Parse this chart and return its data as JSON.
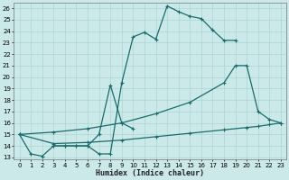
{
  "xlabel": "Humidex (Indice chaleur)",
  "xlim": [
    -0.5,
    23.5
  ],
  "ylim": [
    12.8,
    26.5
  ],
  "xticks": [
    0,
    1,
    2,
    3,
    4,
    5,
    6,
    7,
    8,
    9,
    10,
    11,
    12,
    13,
    14,
    15,
    16,
    17,
    18,
    19,
    20,
    21,
    22,
    23
  ],
  "yticks": [
    13,
    14,
    15,
    16,
    17,
    18,
    19,
    20,
    21,
    22,
    23,
    24,
    25,
    26
  ],
  "bg_color": "#cce9e9",
  "grid_color": "#aad4d4",
  "line_color": "#1a6b6b",
  "lines": [
    {
      "x": [
        0,
        1,
        2,
        3,
        4,
        5,
        6,
        7,
        8,
        9,
        10,
        11,
        12,
        13,
        14,
        15,
        16,
        17,
        18,
        19
      ],
      "y": [
        15.0,
        13.3,
        13.1,
        14.0,
        14.0,
        14.0,
        14.0,
        13.3,
        13.3,
        19.5,
        23.5,
        23.9,
        23.3,
        26.2,
        25.7,
        25.3,
        25.1,
        24.1,
        23.2,
        23.2
      ]
    },
    {
      "x": [
        3,
        4,
        5,
        6,
        7,
        8,
        9,
        10
      ],
      "y": [
        14.0,
        14.0,
        14.0,
        14.0,
        15.0,
        19.3,
        16.0,
        15.5
      ]
    },
    {
      "x": [
        0,
        3,
        6,
        9,
        12,
        15,
        18,
        19,
        20,
        21,
        22,
        23
      ],
      "y": [
        15.0,
        15.2,
        15.5,
        16.0,
        16.8,
        17.8,
        19.5,
        21.0,
        21.0,
        17.0,
        16.3,
        16.0
      ]
    },
    {
      "x": [
        0,
        3,
        6,
        9,
        12,
        15,
        18,
        20,
        21,
        22,
        23
      ],
      "y": [
        15.0,
        14.2,
        14.3,
        14.5,
        14.8,
        15.1,
        15.4,
        15.6,
        15.7,
        15.85,
        16.0
      ]
    }
  ]
}
